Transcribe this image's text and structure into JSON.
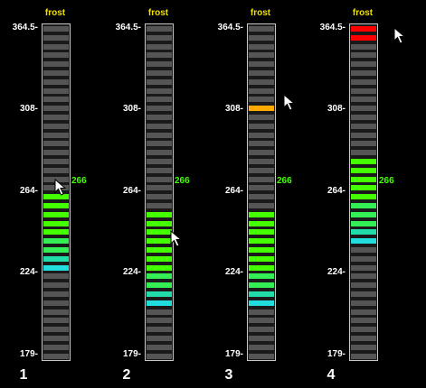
{
  "axis_ticks": [
    "364.5-",
    "308-",
    "264-",
    "224-",
    "179-"
  ],
  "panels": [
    {
      "title": "frost",
      "label": "1",
      "marker": "266",
      "marker_visible": true,
      "active_segments": {
        "green_top": 266,
        "green_bottom": 224
      },
      "cursor": true
    },
    {
      "title": "frost",
      "label": "2",
      "marker": "266",
      "marker_visible": true,
      "active_segments": {
        "green_top": 253,
        "green_bottom": 205
      },
      "cursor": true
    },
    {
      "title": "frost",
      "label": "3",
      "marker": "266",
      "marker_visible": true,
      "active_segments": {
        "green_top": 253,
        "green_bottom": 205,
        "orange_top": 313,
        "orange_bottom": 305
      },
      "cursor": true
    },
    {
      "title": "frost",
      "label": "4",
      "marker": "266",
      "marker_visible": true,
      "active_segments": {
        "green_top": 285,
        "green_bottom": 236,
        "red_top": 364.5,
        "red_bottom": 356
      },
      "cursor": true
    }
  ],
  "colors": {
    "inactive": "#555555",
    "green": "#44ff00",
    "cyan": "#22dddd",
    "blue": "#0055ff",
    "orange": "#ffaa00",
    "red": "#ff0000",
    "title": "#f0e000",
    "marker": "#44ff00"
  }
}
